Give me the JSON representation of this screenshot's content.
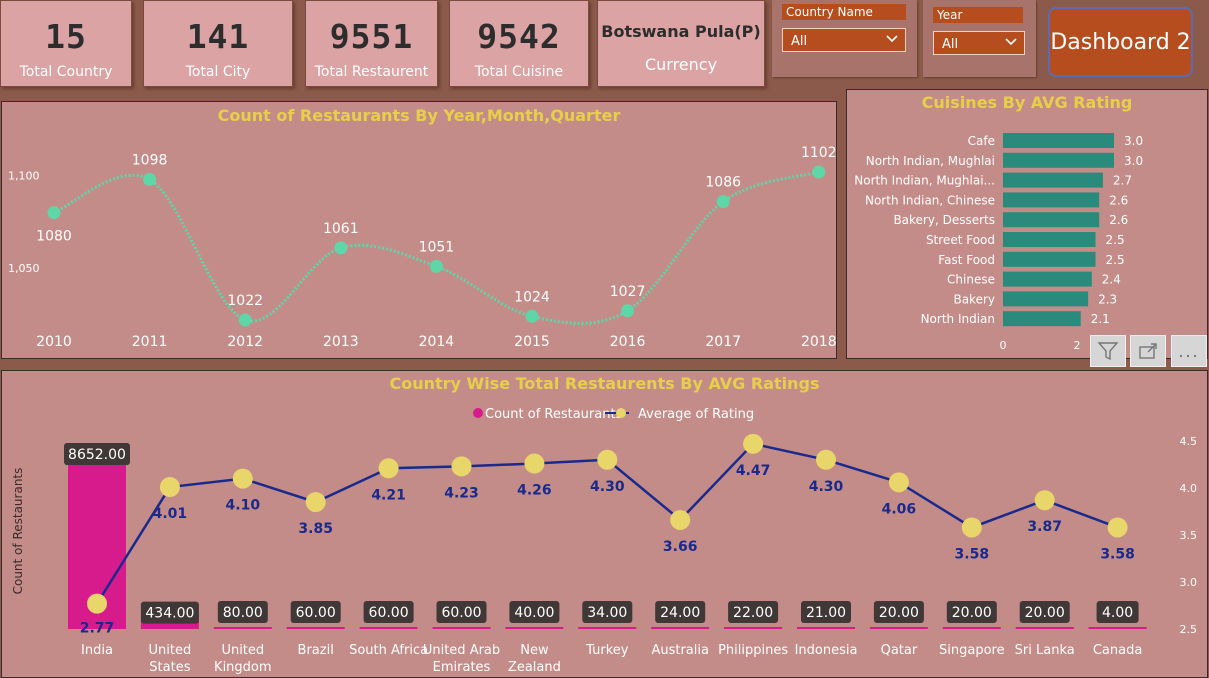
{
  "kpis": [
    {
      "value": "15",
      "label": "Total Country"
    },
    {
      "value": "141",
      "label": "Total City"
    },
    {
      "value": "9551",
      "label": "Total Restaurent"
    },
    {
      "value": "9542",
      "label": "Total Cuisine"
    }
  ],
  "currency": {
    "value": "Botswana Pula(P)",
    "label": "Currency"
  },
  "slicers": {
    "country": {
      "title": "Country Name",
      "value": "All"
    },
    "year": {
      "title": "Year",
      "value": "All"
    }
  },
  "dashboard_button": "Dashboard 2",
  "toolbar": {
    "filter_icon": "filter-icon",
    "focus_icon": "focus-mode-icon",
    "more_icon": "more-options-icon",
    "more_label": "..."
  },
  "chart_data": [
    {
      "type": "line",
      "title": "Count of Restaurants By Year,Month,Quarter",
      "categories": [
        "2010",
        "2011",
        "2012",
        "2013",
        "2014",
        "2015",
        "2016",
        "2017",
        "2018"
      ],
      "values": [
        1080,
        1098,
        1022,
        1061,
        1051,
        1024,
        1027,
        1086,
        1102
      ],
      "ytick_labels": [
        "1,100",
        "1,050"
      ],
      "yticks": [
        1100,
        1050
      ],
      "ylim": [
        1015,
        1110
      ],
      "color": "#5fd6a7"
    },
    {
      "type": "bar",
      "orientation": "horizontal",
      "title": "Cuisines By AVG Rating",
      "categories": [
        "Cafe",
        "North Indian, Mughlai",
        "North Indian, Mughlai...",
        "North Indian, Chinese",
        "Bakery, Desserts",
        "Street Food",
        "Fast Food",
        "Chinese",
        "Bakery",
        "North Indian"
      ],
      "values": [
        3.0,
        3.0,
        2.7,
        2.6,
        2.6,
        2.5,
        2.5,
        2.4,
        2.3,
        2.1
      ],
      "value_labels": [
        "3.0",
        "3.0",
        "2.7",
        "2.6",
        "2.6",
        "2.5",
        "2.5",
        "2.4",
        "2.3",
        "2.1"
      ],
      "xtick_labels": [
        "0",
        "2"
      ],
      "xticks": [
        0,
        2
      ],
      "xlim": [
        0,
        3.5
      ],
      "color": "#2a8a7c"
    },
    {
      "type": "bar",
      "title": "Country Wise Total Restaurents By AVG Ratings",
      "categories": [
        "India",
        "United States",
        "United Kingdom",
        "Brazil",
        "South Africa",
        "United Arab Emirates",
        "New Zealand",
        "Turkey",
        "Australia",
        "Philippines",
        "Indonesia",
        "Qatar",
        "Singapore",
        "Sri Lanka",
        "Canada"
      ],
      "category_lines": [
        [
          "India"
        ],
        [
          "United",
          "States"
        ],
        [
          "United",
          "Kingdom"
        ],
        [
          "Brazil"
        ],
        [
          "South Africa"
        ],
        [
          "United Arab",
          "Emirates"
        ],
        [
          "New",
          "Zealand"
        ],
        [
          "Turkey"
        ],
        [
          "Australia"
        ],
        [
          "Philippines"
        ],
        [
          "Indonesia"
        ],
        [
          "Qatar"
        ],
        [
          "Singapore"
        ],
        [
          "Sri Lanka"
        ],
        [
          "Canada"
        ]
      ],
      "series": [
        {
          "name": "Count of Restaurants",
          "type": "bar",
          "color": "#d81b8c",
          "values": [
            8652,
            434,
            80,
            60,
            60,
            60,
            40,
            34,
            24,
            22,
            21,
            20,
            20,
            20,
            4
          ],
          "labels": [
            "8652.00",
            "434.00",
            "80.00",
            "60.00",
            "60.00",
            "60.00",
            "40.00",
            "34.00",
            "24.00",
            "22.00",
            "21.00",
            "20.00",
            "20.00",
            "20.00",
            "4.00"
          ]
        },
        {
          "name": "Average of Rating",
          "type": "line",
          "color": "#1a2a8c",
          "marker_color": "#e8d66a",
          "values": [
            2.77,
            4.01,
            4.1,
            3.85,
            4.21,
            4.23,
            4.26,
            4.3,
            3.66,
            4.47,
            4.3,
            4.06,
            3.58,
            3.87,
            3.58
          ],
          "labels": [
            "2.77",
            "4.01",
            "4.10",
            "3.85",
            "4.21",
            "4.23",
            "4.26",
            "4.30",
            "3.66",
            "4.47",
            "4.30",
            "4.06",
            "3.58",
            "3.87",
            "3.58"
          ]
        }
      ],
      "ylabel": "Count of Restaurants",
      "ylim": [
        0,
        9700
      ],
      "y2lim": [
        2.5,
        4.55
      ],
      "y2ticks": [
        4.5,
        4.0,
        3.5,
        3.0,
        2.5
      ],
      "y2tick_labels": [
        "4.5",
        "4.0",
        "3.5",
        "3.0",
        "2.5"
      ]
    }
  ]
}
